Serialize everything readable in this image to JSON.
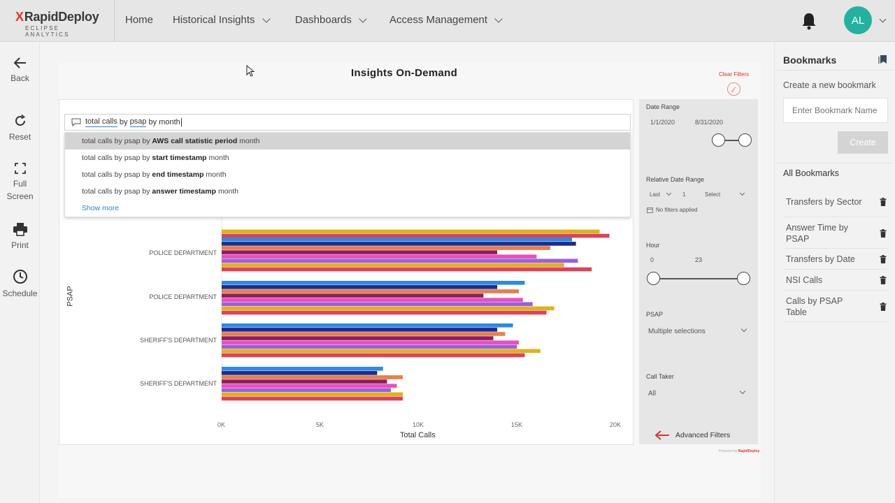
{
  "app": {
    "brand": "RapidDeploy",
    "brand_mark": "X",
    "sub": "ECLIPSE ANALYTICS"
  },
  "nav": {
    "items": [
      "Home",
      "Historical Insights",
      "Dashboards",
      "Access Management"
    ],
    "user_initials": "AL",
    "accent": "#22b3a0"
  },
  "rail": {
    "back": "Back",
    "reset": "Reset",
    "full_screen_1": "Full",
    "full_screen_2": "Screen",
    "print": "Print",
    "schedule": "Schedule"
  },
  "report": {
    "title": "Insights On-Demand",
    "clear_filters": "Clear Filters"
  },
  "qa": {
    "query_parts": [
      "total calls",
      "by",
      "psap",
      "by month"
    ],
    "suggestions": [
      {
        "prefix": "total calls by psap by",
        "bold": "AWS call statistic period",
        "suffix": "month"
      },
      {
        "prefix": "total calls by psap by",
        "bold": "start timestamp",
        "suffix": "month"
      },
      {
        "prefix": "total calls by psap by",
        "bold": "end timestamp",
        "suffix": "month"
      },
      {
        "prefix": "total calls by psap by",
        "bold": "answer timestamp",
        "suffix": "month"
      }
    ],
    "show_more": "Show more"
  },
  "chart_data": {
    "type": "bar",
    "orientation": "horizontal",
    "xlabel": "Total Calls",
    "ylabel": "PSAP",
    "xlim": [
      0,
      20000
    ],
    "x_ticks": [
      "0K",
      "5K",
      "10K",
      "15K",
      "20K"
    ],
    "categories": [
      "",
      "POLICE DEPARTMENT",
      "POLICE DEPARTMENT",
      "SHERIFF'S DEPARTMENT",
      "SHERIFF'S DEPARTMENT"
    ],
    "series_colors": [
      "#2b8ae6",
      "#1d2a8f",
      "#e8804a",
      "#8a1f5e",
      "#e84fbf",
      "#9a5fe0",
      "#e0b21a",
      "#e0405a"
    ],
    "groups": [
      [
        null,
        null,
        null,
        null,
        null,
        null,
        19200,
        19700
      ],
      [
        17800,
        18000,
        16700,
        14000,
        16000,
        18100,
        17400,
        18800
      ],
      [
        15400,
        14000,
        15100,
        13300,
        15300,
        15800,
        16900,
        16500
      ],
      [
        14800,
        14000,
        14400,
        13800,
        15100,
        15000,
        16200,
        15400
      ],
      [
        8200,
        7900,
        9200,
        8400,
        8900,
        8600,
        9200,
        9200
      ]
    ]
  },
  "filters": {
    "date_range_label": "Date Range",
    "date_from": "1/1/2020",
    "date_to": "8/31/2020",
    "relative_label": "Relative Date Range",
    "rel_last": "Last",
    "rel_num": "1",
    "rel_select": "Select",
    "no_filters": "No filters applied",
    "hour_label": "Hour",
    "hour_min": "0",
    "hour_max": "23",
    "psap_label": "PSAP",
    "psap_value": "Multiple selections",
    "call_taker_label": "Call Taker",
    "call_taker_value": "All",
    "advanced": "Advanced Filters",
    "powered_prefix": "Powered by",
    "powered_brand": "RapidDeploy"
  },
  "bookmarks": {
    "title": "Bookmarks",
    "create_label": "Create a new bookmark",
    "input_placeholder": "Enter Bookmark Name",
    "create_button": "Create",
    "all_label": "All Bookmarks",
    "items": [
      "Transfers by Sector",
      "Answer Time by PSAP",
      "Transfers by Date",
      "NSI Calls",
      "Calls by PSAP Table"
    ]
  }
}
